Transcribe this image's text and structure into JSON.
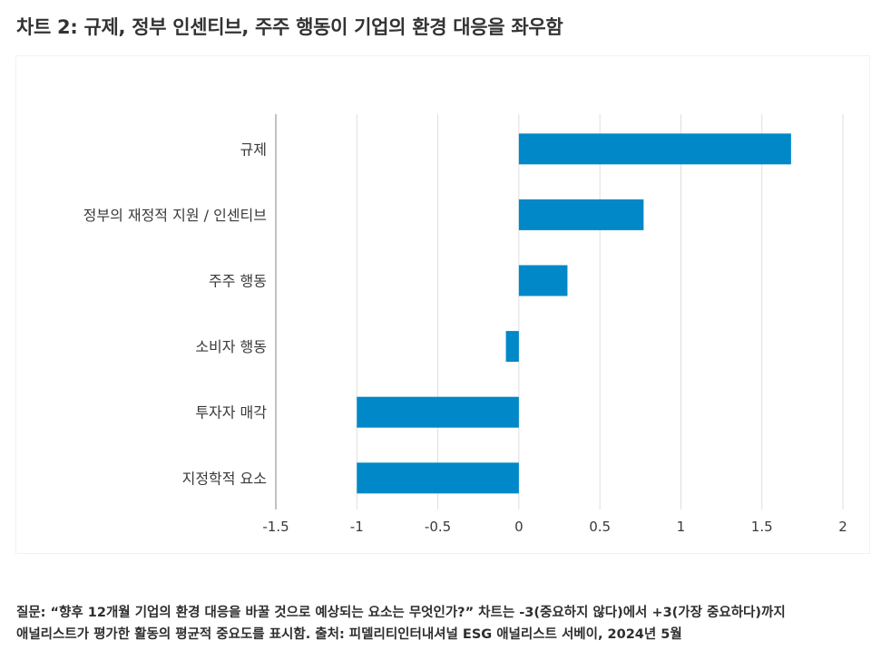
{
  "title": "차트 2: 규제, 정부 인센티브, 주주 행동이 기업의 환경 대응을 좌우함",
  "footnote": {
    "line1": "질문: “향후 12개월 기업의 환경 대응을 바꿀 것으로 예상되는 요소는 무엇인가?” 차트는 -3(중요하지 않다)에서 +3(가장 중요하다)까지",
    "line2": "애널리스트가 평가한 활동의 평균적 중요도를 표시함. 출처: 피델리티인터내셔널 ESG 애널리스트 서베이, 2024년 5월"
  },
  "colors": {
    "bar": "#0088c8",
    "grid": "#dedede",
    "axis": "#9a9a9a",
    "text": "#3a3a3a"
  },
  "chart_data": {
    "type": "bar",
    "orientation": "horizontal",
    "title": "",
    "xlabel": "",
    "ylabel": "",
    "categories": [
      "규제",
      "정부의 재정적 지원 / 인센티브",
      "주주 행동",
      "소비자 행동",
      "투자자 매각",
      "지정학적 요소"
    ],
    "values": [
      1.68,
      0.77,
      0.3,
      -0.08,
      -1.0,
      -1.0
    ],
    "xlim": [
      -1.5,
      2
    ],
    "xticks": [
      -1.5,
      -1,
      -0.5,
      0,
      0.5,
      1,
      1.5,
      2
    ],
    "xtick_labels": [
      "-1.5",
      "-1",
      "-0.5",
      "0",
      "0.5",
      "1",
      "1.5",
      "2"
    ],
    "grid": true,
    "legend": "none"
  }
}
